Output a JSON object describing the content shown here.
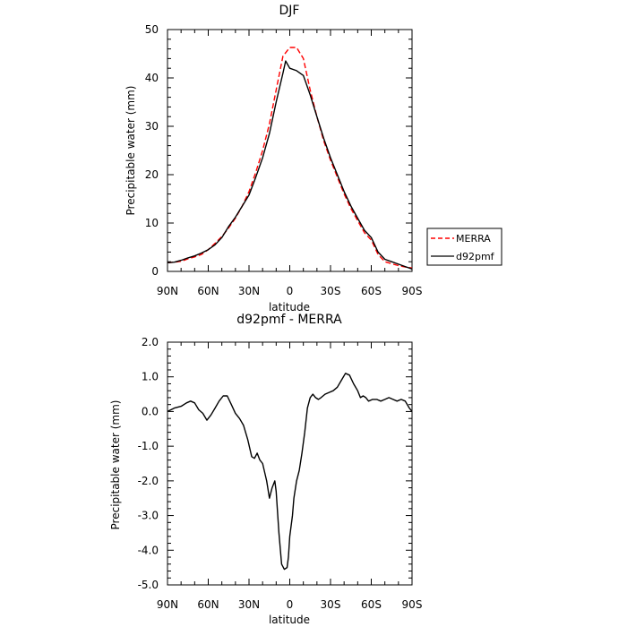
{
  "chart_data": [
    {
      "type": "line",
      "title": "DJF",
      "xlabel": "latitude",
      "ylabel": "Precipitable water (mm)",
      "xlim": [
        90,
        -90
      ],
      "ylim": [
        0,
        50
      ],
      "x_tick_values": [
        90,
        60,
        30,
        0,
        -30,
        -60,
        -90
      ],
      "x_tick_labels": [
        "90N",
        "60N",
        "30N",
        "0",
        "30S",
        "60S",
        "90S"
      ],
      "y_tick_values": [
        0,
        10,
        20,
        30,
        40,
        50
      ],
      "y_tick_labels": [
        "0",
        "10",
        "20",
        "30",
        "40",
        "50"
      ],
      "legend_position": "right",
      "series": [
        {
          "name": "MERRA",
          "color": "#ff0000",
          "dash": "dashed",
          "x": [
            90,
            85,
            80,
            75,
            70,
            65,
            60,
            55,
            50,
            45,
            40,
            35,
            30,
            25,
            20,
            15,
            10,
            5,
            0,
            -5,
            -10,
            -15,
            -20,
            -25,
            -30,
            -35,
            -40,
            -45,
            -50,
            -55,
            -60,
            -65,
            -70,
            -75,
            -80,
            -85,
            -90
          ],
          "y": [
            1.8,
            1.9,
            2.1,
            2.6,
            3.0,
            3.5,
            4.5,
            5.8,
            7.2,
            9.0,
            11.0,
            13.5,
            16.5,
            20.5,
            25.0,
            30.5,
            37.5,
            44.5,
            46.3,
            46.3,
            44.0,
            37.5,
            32.0,
            27.0,
            23.0,
            19.5,
            16.0,
            13.0,
            10.5,
            8.0,
            6.5,
            3.5,
            2.0,
            1.6,
            1.2,
            0.9,
            0.7
          ]
        },
        {
          "name": "d92pmf",
          "color": "#000000",
          "dash": "solid",
          "x": [
            90,
            85,
            80,
            75,
            70,
            65,
            60,
            55,
            50,
            45,
            40,
            35,
            30,
            25,
            20,
            15,
            10,
            5,
            3,
            0,
            -5,
            -10,
            -15,
            -20,
            -25,
            -30,
            -35,
            -40,
            -45,
            -50,
            -55,
            -60,
            -65,
            -70,
            -75,
            -80,
            -85,
            -90
          ],
          "y": [
            1.8,
            1.9,
            2.3,
            2.8,
            3.2,
            3.8,
            4.5,
            5.5,
            7.0,
            9.3,
            11.2,
            13.5,
            15.8,
            19.5,
            23.5,
            28.5,
            35.0,
            41.0,
            43.5,
            42.0,
            41.5,
            40.5,
            36.5,
            32.0,
            27.5,
            23.5,
            20.0,
            16.5,
            13.5,
            11.0,
            8.5,
            7.0,
            4.0,
            2.5,
            2.0,
            1.5,
            1.0,
            0.5
          ]
        }
      ]
    },
    {
      "type": "line",
      "title": "d92pmf - MERRA",
      "xlabel": "latitude",
      "ylabel": "Precipitable water (mm)",
      "xlim": [
        90,
        -90
      ],
      "ylim": [
        -5.0,
        2.0
      ],
      "x_tick_values": [
        90,
        60,
        30,
        0,
        -30,
        -60,
        -90
      ],
      "x_tick_labels": [
        "90N",
        "60N",
        "30N",
        "0",
        "30S",
        "60S",
        "90S"
      ],
      "y_tick_values": [
        -5,
        -4,
        -3,
        -2,
        -1,
        0,
        1,
        2
      ],
      "y_tick_labels": [
        "-5.0",
        "-4.0",
        "-3.0",
        "-2.0",
        "-1.0",
        "0.0",
        "1.0",
        "2.0"
      ],
      "series": [
        {
          "name": "",
          "color": "#000000",
          "dash": "solid",
          "x": [
            90,
            85,
            80,
            76,
            73,
            70,
            67,
            64,
            61,
            58,
            55,
            52,
            49,
            46,
            43,
            40,
            37,
            34,
            31,
            28,
            26,
            24,
            22,
            20,
            17,
            15,
            13,
            11,
            10,
            8,
            6,
            4,
            2,
            1,
            0,
            -2,
            -3,
            -5,
            -7,
            -9,
            -11,
            -13,
            -15,
            -17,
            -19,
            -21,
            -23,
            -26,
            -29,
            -32,
            -35,
            -38,
            -41,
            -44,
            -47,
            -50,
            -52,
            -54,
            -56,
            -58,
            -61,
            -64,
            -67,
            -70,
            -73,
            -76,
            -79,
            -82,
            -85,
            -88,
            -90
          ],
          "y": [
            0.0,
            0.1,
            0.15,
            0.25,
            0.3,
            0.25,
            0.05,
            -0.05,
            -0.25,
            -0.1,
            0.1,
            0.3,
            0.45,
            0.45,
            0.2,
            -0.05,
            -0.2,
            -0.4,
            -0.8,
            -1.3,
            -1.35,
            -1.2,
            -1.4,
            -1.5,
            -2.0,
            -2.5,
            -2.2,
            -2.0,
            -2.3,
            -3.5,
            -4.4,
            -4.55,
            -4.5,
            -4.2,
            -3.6,
            -3.0,
            -2.5,
            -2.0,
            -1.7,
            -1.2,
            -0.6,
            0.1,
            0.4,
            0.5,
            0.4,
            0.35,
            0.4,
            0.5,
            0.55,
            0.6,
            0.7,
            0.9,
            1.1,
            1.05,
            0.8,
            0.6,
            0.4,
            0.45,
            0.4,
            0.3,
            0.35,
            0.35,
            0.3,
            0.35,
            0.4,
            0.35,
            0.3,
            0.35,
            0.3,
            0.1,
            0.0
          ]
        }
      ]
    }
  ]
}
